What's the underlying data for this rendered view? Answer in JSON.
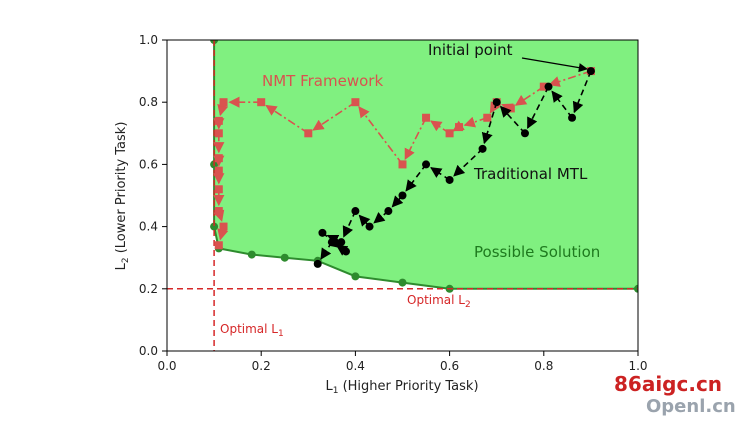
{
  "chart_data": {
    "type": "line",
    "xlabel_main": "L",
    "xlabel_sub": "1",
    "xlabel_rest": " (Higher Priority Task)",
    "ylabel_main": "L",
    "ylabel_sub": "2",
    "ylabel_rest": " (Lower Priority Task)",
    "xlim": [
      0,
      1
    ],
    "ylim": [
      0,
      1
    ],
    "xticks": [
      "0.0",
      "0.2",
      "0.4",
      "0.6",
      "0.8",
      "1.0"
    ],
    "yticks": [
      "0.0",
      "0.2",
      "0.4",
      "0.6",
      "0.8",
      "1.0"
    ],
    "grid": false,
    "region": {
      "name": "Possible Solution",
      "color": "#80f080",
      "boundary": [
        [
          0.1,
          1.0
        ],
        [
          0.1,
          0.6
        ],
        [
          0.1,
          0.4
        ],
        [
          0.11,
          0.33
        ],
        [
          0.18,
          0.31
        ],
        [
          0.25,
          0.3
        ],
        [
          0.32,
          0.29
        ],
        [
          0.4,
          0.24
        ],
        [
          0.5,
          0.22
        ],
        [
          0.6,
          0.2
        ],
        [
          1.0,
          0.2
        ]
      ]
    },
    "series": [
      {
        "name": "NMT Framework",
        "color": "#d9534f",
        "marker": "square",
        "x": [
          0.9,
          0.8,
          0.73,
          0.7,
          0.68,
          0.62,
          0.6,
          0.55,
          0.5,
          0.4,
          0.3,
          0.2,
          0.12,
          0.11,
          0.11,
          0.11,
          0.11,
          0.11,
          0.11,
          0.12,
          0.11
        ],
        "y": [
          0.9,
          0.85,
          0.78,
          0.8,
          0.75,
          0.72,
          0.7,
          0.75,
          0.6,
          0.8,
          0.7,
          0.8,
          0.8,
          0.74,
          0.7,
          0.62,
          0.58,
          0.52,
          0.45,
          0.4,
          0.34
        ]
      },
      {
        "name": "Traditional MTL",
        "color": "#000000",
        "marker": "circle",
        "x": [
          0.9,
          0.86,
          0.81,
          0.76,
          0.7,
          0.67,
          0.6,
          0.55,
          0.5,
          0.47,
          0.43,
          0.4,
          0.37,
          0.33,
          0.38,
          0.35,
          0.32
        ],
        "y": [
          0.9,
          0.75,
          0.85,
          0.7,
          0.8,
          0.65,
          0.55,
          0.6,
          0.5,
          0.45,
          0.4,
          0.45,
          0.35,
          0.38,
          0.32,
          0.35,
          0.28
        ]
      }
    ],
    "optimal": {
      "x": 0.1,
      "y": 0.2,
      "color": "#d62728"
    },
    "annotations": {
      "initial_point": "Initial point",
      "nmt": "NMT Framework",
      "mtl": "Traditional MTL",
      "possible": "Possible Solution",
      "optimal_l1_main": "Optimal L",
      "optimal_l1_sub": "1",
      "optimal_l2_main": "Optimal L",
      "optimal_l2_sub": "2"
    }
  },
  "watermark": {
    "line1": "86aigc.cn",
    "line2": "Openl.cn"
  }
}
